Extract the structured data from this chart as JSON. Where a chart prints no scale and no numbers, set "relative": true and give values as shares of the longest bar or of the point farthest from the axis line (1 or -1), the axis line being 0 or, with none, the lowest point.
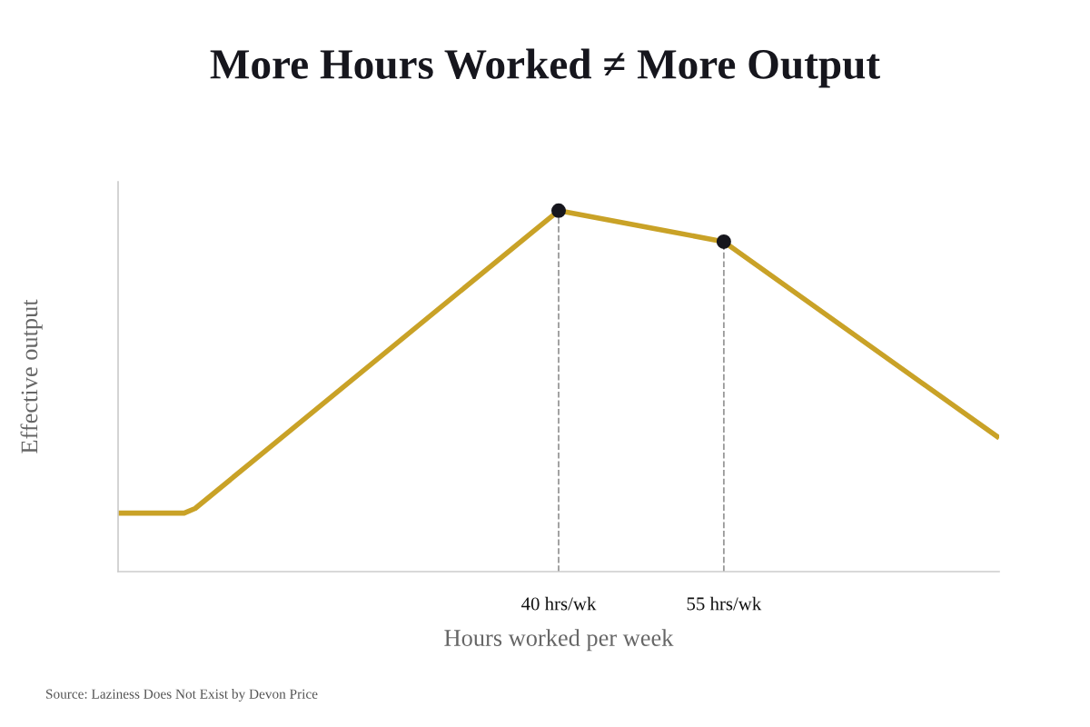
{
  "chart_data": {
    "type": "line",
    "title": "More Hours Worked ≠ More Output",
    "xlabel": "Hours worked per week",
    "ylabel": "Effective output",
    "relative": true,
    "xlim": [
      0,
      80
    ],
    "xticks": [
      {
        "value": 40,
        "label": "40 hrs/wk"
      },
      {
        "value": 55,
        "label": "55 hrs/wk"
      }
    ],
    "series": [
      {
        "color": "#c9a227",
        "x": [
          0,
          6,
          7,
          40,
          55,
          80
        ],
        "values": [
          0.162,
          0.162,
          0.175,
          1,
          0.914,
          0.37
        ]
      },
      {
        "type": "scatter",
        "color": "#16161d",
        "x": [
          40,
          55
        ],
        "values": [
          1,
          0.914
        ]
      }
    ],
    "ref_lines": [
      {
        "axis": "x",
        "value": 40,
        "color": "#999999",
        "line_style": "dashed"
      },
      {
        "axis": "x",
        "value": 55,
        "color": "#999999",
        "line_style": "dashed"
      }
    ],
    "grid": false,
    "legend": false,
    "annotations": [
      "Source: Laziness Does Not Exist by Devon Price"
    ]
  }
}
